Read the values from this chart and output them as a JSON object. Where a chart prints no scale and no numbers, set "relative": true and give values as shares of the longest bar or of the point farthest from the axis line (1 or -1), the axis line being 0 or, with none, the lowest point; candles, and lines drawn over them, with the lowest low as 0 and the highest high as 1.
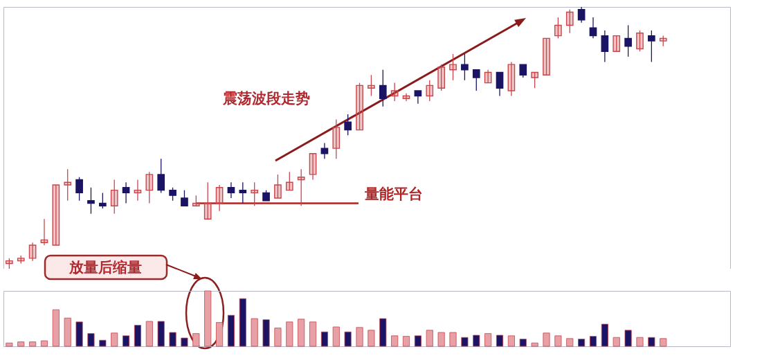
{
  "chart_data": [
    {
      "type": "candlestick",
      "relative": true,
      "categories": [
        null,
        null,
        null,
        null,
        null,
        null,
        null,
        null,
        null,
        null,
        null,
        null,
        null,
        null,
        null,
        null,
        null,
        null,
        null,
        null,
        null,
        null,
        null,
        null,
        null,
        null,
        null,
        null,
        null,
        null,
        null,
        null,
        null,
        null,
        null,
        null,
        null,
        null,
        null,
        null,
        null,
        null,
        null,
        null,
        null,
        null,
        null,
        null,
        null,
        null,
        null,
        null,
        null,
        null,
        null,
        null,
        null
      ],
      "ohlc": [
        [
          0.02,
          0.04,
          0,
          0.03
        ],
        [
          0.03,
          0.05,
          0.02,
          0.04
        ],
        [
          0.04,
          0.1,
          0.03,
          0.09
        ],
        [
          0.1,
          0.19,
          0.09,
          0.11
        ],
        [
          0.09,
          0.32,
          0.09,
          0.32
        ],
        [
          0.32,
          0.38,
          0.26,
          0.33
        ],
        [
          0.34,
          0.35,
          0.26,
          0.29
        ],
        [
          0.26,
          0.31,
          0.21,
          0.25
        ],
        [
          0.25,
          0.29,
          0.23,
          0.24
        ],
        [
          0.24,
          0.34,
          0.21,
          0.3
        ],
        [
          0.31,
          0.33,
          0.25,
          0.29
        ],
        [
          0.29,
          0.34,
          0.26,
          0.3
        ],
        [
          0.3,
          0.37,
          0.25,
          0.36
        ],
        [
          0.36,
          0.42,
          0.29,
          0.3
        ],
        [
          0.3,
          0.31,
          0.26,
          0.28
        ],
        [
          0.27,
          0.3,
          0.24,
          0.24
        ],
        [
          0.24,
          0.28,
          0.24,
          0.25
        ],
        [
          0.19,
          0.33,
          0.19,
          0.25
        ],
        [
          0.25,
          0.32,
          0.22,
          0.31
        ],
        [
          0.31,
          0.33,
          0.27,
          0.29
        ],
        [
          0.3,
          0.33,
          0.25,
          0.29
        ],
        [
          0.29,
          0.33,
          0.24,
          0.3
        ],
        [
          0.29,
          0.3,
          0.26,
          0.26
        ],
        [
          0.27,
          0.36,
          0.27,
          0.32
        ],
        [
          0.3,
          0.37,
          0.3,
          0.33
        ],
        [
          0.34,
          0.38,
          0.24,
          0.35
        ],
        [
          0.36,
          0.44,
          0.34,
          0.44
        ],
        [
          0.46,
          0.48,
          0.42,
          0.44
        ],
        [
          0.46,
          0.57,
          0.42,
          0.54
        ],
        [
          0.56,
          0.59,
          0.51,
          0.53
        ],
        [
          0.53,
          0.71,
          0.53,
          0.7
        ],
        [
          0.69,
          0.74,
          0.66,
          0.7
        ],
        [
          0.7,
          0.76,
          0.62,
          0.65
        ],
        [
          0.66,
          0.71,
          0.64,
          0.68
        ],
        [
          0.65,
          0.67,
          0.64,
          0.66
        ],
        [
          0.68,
          0.68,
          0.63,
          0.66
        ],
        [
          0.66,
          0.72,
          0.64,
          0.7
        ],
        [
          0.69,
          0.78,
          0.68,
          0.77
        ],
        [
          0.76,
          0.82,
          0.72,
          0.78
        ],
        [
          0.78,
          0.82,
          0.72,
          0.76
        ],
        [
          0.76,
          0.76,
          0.68,
          0.73
        ],
        [
          0.71,
          0.76,
          0.71,
          0.75
        ],
        [
          0.75,
          0.75,
          0.66,
          0.69
        ],
        [
          0.68,
          0.79,
          0.66,
          0.78
        ],
        [
          0.78,
          0.78,
          0.73,
          0.74
        ],
        [
          0.73,
          0.75,
          0.69,
          0.75
        ],
        [
          0.74,
          0.88,
          0.74,
          0.88
        ],
        [
          0.89,
          0.96,
          0.88,
          0.93
        ],
        [
          0.93,
          0.99,
          0.9,
          0.98
        ],
        [
          0.99,
          1,
          0.94,
          0.95
        ],
        [
          0.92,
          0.96,
          0.88,
          0.89
        ],
        [
          0.89,
          0.91,
          0.79,
          0.83
        ],
        [
          0.83,
          0.89,
          0.83,
          0.89
        ],
        [
          0.88,
          0.93,
          0.81,
          0.85
        ],
        [
          0.84,
          0.91,
          0.83,
          0.9
        ],
        [
          0.89,
          0.91,
          0.79,
          0.87
        ],
        [
          0.87,
          0.89,
          0.85,
          0.88
        ]
      ],
      "colors": [
        "#c8464b",
        "#c8464b",
        "#c8464b",
        "#c8464b",
        "#c8464b",
        "#c8464b",
        "#1b1464",
        "#1b1464",
        "#1b1464",
        "#c8464b",
        "#1b1464",
        "#c8464b",
        "#c8464b",
        "#1b1464",
        "#1b1464",
        "#1b1464",
        "#c8464b",
        "#c8464b",
        "#c8464b",
        "#1b1464",
        "#1b1464",
        "#c8464b",
        "#1b1464",
        "#c8464b",
        "#c8464b",
        "#c8464b",
        "#c8464b",
        "#1b1464",
        "#c8464b",
        "#1b1464",
        "#c8464b",
        "#c8464b",
        "#1b1464",
        "#c8464b",
        "#c8464b",
        "#1b1464",
        "#c8464b",
        "#c8464b",
        "#c8464b",
        "#1b1464",
        "#1b1464",
        "#c8464b",
        "#1b1464",
        "#c8464b",
        "#1b1464",
        "#c8464b",
        "#c8464b",
        "#c8464b",
        "#c8464b",
        "#1b1464",
        "#1b1464",
        "#1b1464",
        "#c8464b",
        "#1b1464",
        "#c8464b",
        "#1b1464",
        "#c8464b"
      ],
      "ref_lines": [
        {
          "axis": "y",
          "value": 0.25,
          "label": "量能平台",
          "color": "#b22222"
        }
      ],
      "annotations": [
        "震荡波段走势"
      ]
    },
    {
      "type": "bar",
      "relative": true,
      "categories": [
        null,
        null,
        null,
        null,
        null,
        null,
        null,
        null,
        null,
        null,
        null,
        null,
        null,
        null,
        null,
        null,
        null,
        null,
        null,
        null,
        null,
        null,
        null,
        null,
        null,
        null,
        null,
        null,
        null,
        null,
        null,
        null,
        null,
        null,
        null,
        null,
        null,
        null,
        null,
        null,
        null,
        null,
        null,
        null,
        null,
        null,
        null,
        null,
        null,
        null,
        null,
        null,
        null,
        null,
        null,
        null,
        null
      ],
      "values": [
        0.06,
        0.08,
        0.08,
        0.1,
        0.66,
        0.51,
        0.44,
        0.23,
        0.11,
        0.24,
        0.19,
        0.38,
        0.45,
        0.45,
        0.25,
        0.15,
        0.23,
        1,
        0.43,
        0.56,
        0.86,
        0.5,
        0.48,
        0.33,
        0.44,
        0.49,
        0.44,
        0.26,
        0.35,
        0.26,
        0.34,
        0.29,
        0.5,
        0.19,
        0.18,
        0.19,
        0.29,
        0.25,
        0.25,
        0.16,
        0.2,
        0.23,
        0.2,
        0.19,
        0.13,
        0.06,
        0.24,
        0.19,
        0.14,
        0.13,
        0.18,
        0.4,
        0.16,
        0.29,
        0.16,
        0.16,
        0.14
      ],
      "colors": [
        "#e7a0a6",
        "#e7a0a6",
        "#e7a0a6",
        "#e7a0a6",
        "#e7a0a6",
        "#e7a0a6",
        "#1b1464",
        "#1b1464",
        "#1b1464",
        "#e7a0a6",
        "#1b1464",
        "#1b1464",
        "#e7a0a6",
        "#1b1464",
        "#1b1464",
        "#1b1464",
        "#e7a0a6",
        "#e7a0a6",
        "#e7a0a6",
        "#1b1464",
        "#1b1464",
        "#e7a0a6",
        "#1b1464",
        "#e7a0a6",
        "#e7a0a6",
        "#e7a0a6",
        "#e7a0a6",
        "#1b1464",
        "#e7a0a6",
        "#1b1464",
        "#e7a0a6",
        "#e7a0a6",
        "#1b1464",
        "#e7a0a6",
        "#e7a0a6",
        "#1b1464",
        "#e7a0a6",
        "#e7a0a6",
        "#e7a0a6",
        "#1b1464",
        "#1b1464",
        "#e7a0a6",
        "#1b1464",
        "#e7a0a6",
        "#1b1464",
        "#e7a0a6",
        "#e7a0a6",
        "#e7a0a6",
        "#e7a0a6",
        "#1b1464",
        "#1b1464",
        "#1b1464",
        "#e7a0a6",
        "#1b1464",
        "#e7a0a6",
        "#1b1464",
        "#e7a0a6"
      ],
      "annotations": [
        "放量后缩量"
      ]
    }
  ]
}
